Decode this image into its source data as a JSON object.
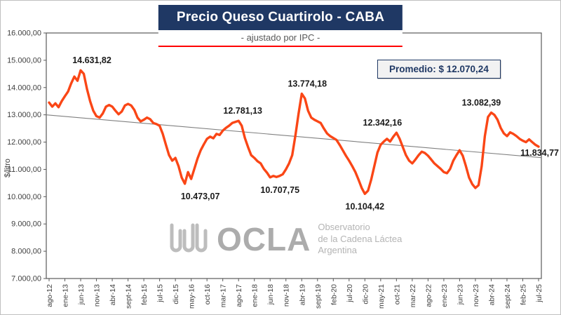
{
  "title": "Precio Queso Cuartirolo - CABA",
  "subtitle": "- ajustado por IPC -",
  "promedio_label": "Promedio: $ 12.070,24",
  "y_axis_title": "$/litro",
  "watermark": {
    "brand": "OCLA",
    "line1": "Observatorio",
    "line2": "de la Cadena Láctea",
    "line3": "Argentina"
  },
  "colors": {
    "line": "#FA4616",
    "navy": "#1F3864",
    "accent_red": "#FF0000",
    "trend": "#808080",
    "axis_text": "#404040"
  },
  "chart_data": {
    "type": "line",
    "title": "Precio Queso Cuartirolo - CABA",
    "subtitle": "- ajustado por IPC -",
    "ylabel": "$/litro",
    "ylim": [
      7000,
      16000
    ],
    "y_tick_step": 1000,
    "y_tick_labels": [
      "16.000,00",
      "15.000,00",
      "14.000,00",
      "13.000,00",
      "12.000,00",
      "11.000,00",
      "10.000,00",
      "9.000,00",
      "8.000,00",
      "7.000,00"
    ],
    "x_tick_step": 5,
    "x_tick_labels": [
      "ago-12",
      "ene-13",
      "jun-13",
      "nov-13",
      "abr-14",
      "sept-14",
      "feb-15",
      "jul-15",
      "dic-15",
      "may-16",
      "oct-16",
      "mar-17",
      "ago-17",
      "ene-18",
      "jun-18",
      "nov-18",
      "abr-19",
      "sept-19",
      "feb-20",
      "jul-20",
      "dic-20",
      "may-21",
      "oct-21",
      "mar-22",
      "ago-22",
      "ene-23",
      "jun-23",
      "nov-23",
      "abr-24",
      "sept-24",
      "feb-25",
      "jul-25"
    ],
    "average": 12070.24,
    "trend": {
      "start": 13000,
      "end": 11430
    },
    "grid": false,
    "legend": false,
    "series": [
      {
        "name": "Precio Queso Cuartirolo ajustado por IPC ($/litro)",
        "values": [
          13450,
          13300,
          13420,
          13280,
          13500,
          13680,
          13850,
          14150,
          14400,
          14250,
          14631.82,
          14500,
          13950,
          13500,
          13150,
          12950,
          12900,
          13050,
          13300,
          13360,
          13300,
          13150,
          13020,
          13120,
          13340,
          13400,
          13340,
          13180,
          12900,
          12760,
          12820,
          12900,
          12840,
          12700,
          12660,
          12600,
          12300,
          11900,
          11520,
          11320,
          11420,
          11120,
          10700,
          10473.07,
          10900,
          10650,
          11020,
          11400,
          11700,
          11920,
          12120,
          12200,
          12140,
          12300,
          12260,
          12420,
          12520,
          12600,
          12700,
          12740,
          12781.13,
          12600,
          12150,
          11820,
          11520,
          11420,
          11300,
          11220,
          11020,
          10880,
          10707.75,
          10760,
          10720,
          10760,
          10820,
          11000,
          11220,
          11520,
          12250,
          13050,
          13774.18,
          13600,
          13150,
          12900,
          12820,
          12760,
          12700,
          12500,
          12320,
          12220,
          12150,
          12080,
          11900,
          11700,
          11500,
          11320,
          11120,
          10900,
          10620,
          10320,
          10104.42,
          10220,
          10620,
          11120,
          11620,
          11900,
          12020,
          12120,
          12020,
          12200,
          12342.16,
          12120,
          11820,
          11520,
          11320,
          11220,
          11360,
          11520,
          11650,
          11600,
          11500,
          11360,
          11220,
          11120,
          11020,
          10900,
          10860,
          11020,
          11320,
          11520,
          11700,
          11500,
          11120,
          10700,
          10460,
          10320,
          10420,
          11120,
          12220,
          12920,
          13082.39,
          13000,
          12820,
          12520,
          12320,
          12220,
          12360,
          12300,
          12220,
          12120,
          12050,
          12000,
          12100,
          12000,
          11900,
          11834.77
        ]
      }
    ],
    "annotations": [
      {
        "text": "14.631,82",
        "i": 10,
        "v": 14631.82,
        "pos": "above",
        "dx": 16
      },
      {
        "text": "10.473,07",
        "i": 43,
        "v": 10473.07,
        "pos": "below",
        "dx": 22
      },
      {
        "text": "12.781,13",
        "i": 60,
        "v": 12781.13,
        "pos": "above",
        "dx": 6
      },
      {
        "text": "10.707,75",
        "i": 70,
        "v": 10707.75,
        "pos": "below",
        "dx": 14
      },
      {
        "text": "13.774,18",
        "i": 80,
        "v": 13774.18,
        "pos": "above",
        "dx": 8
      },
      {
        "text": "10.104,42",
        "i": 100,
        "v": 10104.42,
        "pos": "below",
        "dx": 0
      },
      {
        "text": "12.342,16",
        "i": 110,
        "v": 12342.16,
        "pos": "above",
        "dx": -20
      },
      {
        "text": "13.082,39",
        "i": 140,
        "v": 13082.39,
        "pos": "above",
        "dx": -14
      },
      {
        "text": "11.834,77",
        "i": 155,
        "v": 11834.77,
        "pos": "right",
        "dx": 0
      }
    ]
  }
}
